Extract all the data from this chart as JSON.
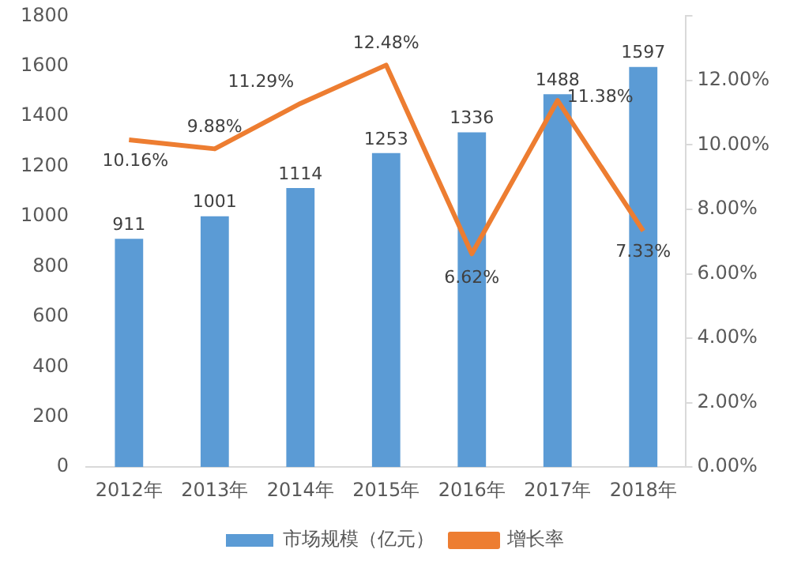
{
  "chart_data": {
    "type": "bar",
    "categories": [
      "2012年",
      "2013年",
      "2014年",
      "2015年",
      "2016年",
      "2017年",
      "2018年"
    ],
    "series": [
      {
        "name": "市场规模（亿元）",
        "color": "#5b9bd5",
        "values": [
          911,
          1001,
          1114,
          1253,
          1336,
          1488,
          1597
        ]
      },
      {
        "name": "增长率",
        "type": "line",
        "axis": "y2",
        "color": "#ed7d31",
        "values": [
          10.16,
          9.88,
          11.29,
          12.48,
          6.62,
          11.38,
          7.33
        ],
        "value_labels": [
          "10.16%",
          "9.88%",
          "11.29%",
          "12.48%",
          "6.62%",
          "11.38%",
          "7.33%"
        ]
      }
    ],
    "ylim": [
      0,
      1800
    ],
    "yticks": [
      0,
      200,
      400,
      600,
      800,
      1000,
      1200,
      1400,
      1600,
      1800
    ],
    "y2lim": [
      0,
      14
    ],
    "y2ticks": [
      {
        "value": 0,
        "label": "0.00%"
      },
      {
        "value": 2,
        "label": "2.00%"
      },
      {
        "value": 4,
        "label": "4.00%"
      },
      {
        "value": 6,
        "label": "6.00%"
      },
      {
        "value": 8,
        "label": "8.00%"
      },
      {
        "value": 10,
        "label": "10.00%"
      },
      {
        "value": 12,
        "label": "12.00%"
      },
      {
        "value": 14,
        "label": null
      }
    ],
    "data_labels": true,
    "grid": false,
    "legend": "bottom",
    "marker": "none"
  }
}
